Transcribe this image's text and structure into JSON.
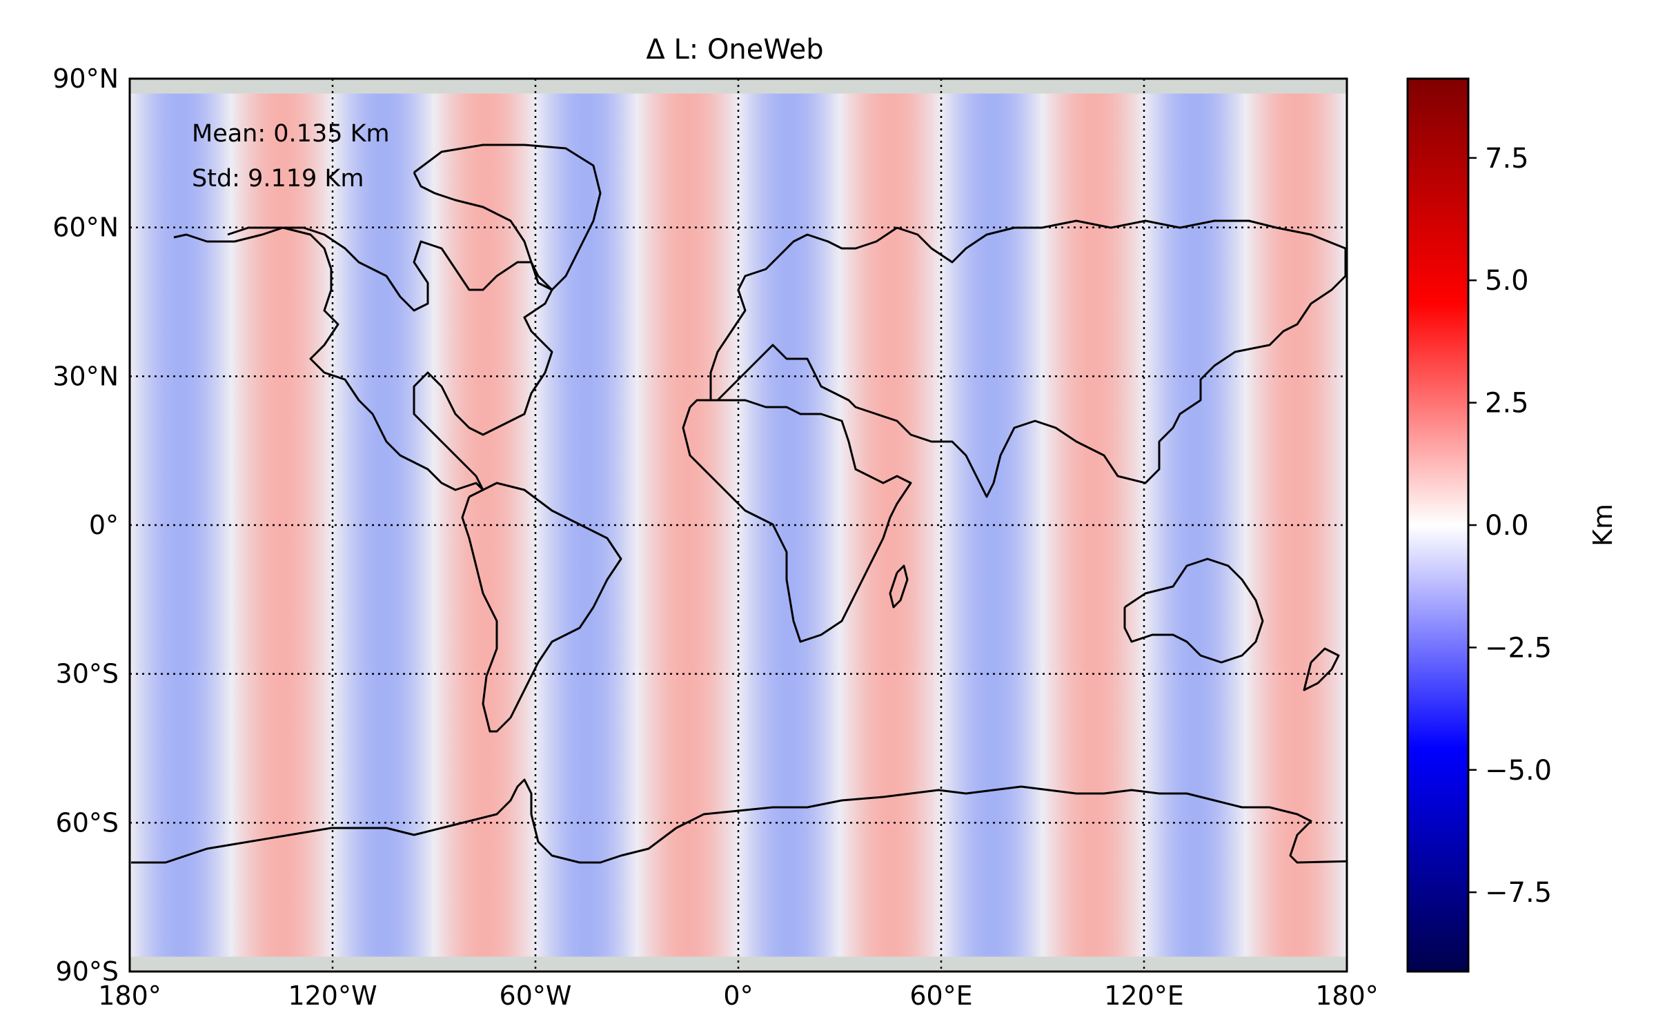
{
  "chart_data": {
    "type": "heatmap",
    "title": "Δ L: OneWeb",
    "annotations": {
      "mean": "Mean: 0.135 Km",
      "std": "Std: 9.119 Km"
    },
    "x_ticks": [
      {
        "value": -180,
        "label": "180°"
      },
      {
        "value": -120,
        "label": "120°W"
      },
      {
        "value": -60,
        "label": "60°W"
      },
      {
        "value": 0,
        "label": "0°"
      },
      {
        "value": 60,
        "label": "60°E"
      },
      {
        "value": 120,
        "label": "120°E"
      },
      {
        "value": 180,
        "label": "180°"
      }
    ],
    "y_ticks": [
      {
        "value": 90,
        "label": "90°N"
      },
      {
        "value": 60,
        "label": "60°N"
      },
      {
        "value": 30,
        "label": "30°N"
      },
      {
        "value": 0,
        "label": "0°"
      },
      {
        "value": -30,
        "label": "30°S"
      },
      {
        "value": -60,
        "label": "60°S"
      },
      {
        "value": -90,
        "label": "90°S"
      }
    ],
    "xlim": [
      -180,
      180
    ],
    "ylim": [
      -90,
      90
    ],
    "grid": true,
    "stripe_period_deg": 60,
    "stripe_phase_deg": -165,
    "colorbar": {
      "label": "Km",
      "range": [
        -9.119,
        9.119
      ],
      "ticks": [
        {
          "value": 7.5,
          "label": "7.5"
        },
        {
          "value": 5.0,
          "label": "5.0"
        },
        {
          "value": 2.5,
          "label": "2.5"
        },
        {
          "value": 0.0,
          "label": "0.0"
        },
        {
          "value": -2.5,
          "label": "−2.5"
        },
        {
          "value": -5.0,
          "label": "−5.0"
        },
        {
          "value": -7.5,
          "label": "−7.5"
        }
      ],
      "colormap": [
        "#00004c",
        "#0000ff",
        "#ffffff",
        "#ff0000",
        "#800000"
      ]
    },
    "colors": {
      "blue_band": "#a3b1f5",
      "red_band": "#f7b0ab",
      "polar_gap": "#d4d8d4",
      "coast": "#000000"
    }
  }
}
